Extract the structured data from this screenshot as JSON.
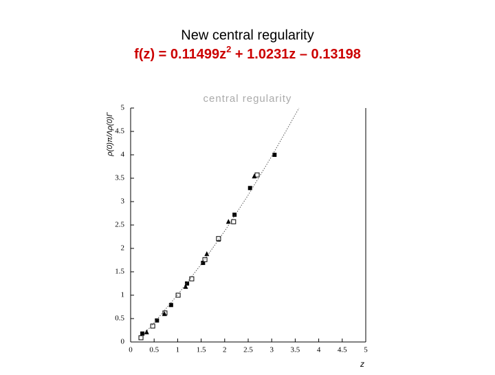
{
  "header": {
    "title": "New central regularity",
    "formula": {
      "prefix": "f(z) = 0.11499z",
      "superscript": "2",
      "suffix": " + 1.0231z – 0.13198"
    }
  },
  "chart_data": {
    "type": "scatter",
    "title": "central regularity",
    "x_label": "z",
    "y_label": "ρ(0)π/Λρ(0)Γ",
    "xlim": [
      0,
      5
    ],
    "ylim": [
      0,
      5
    ],
    "xticks": [
      0,
      0.5,
      1,
      1.5,
      2,
      2.5,
      3,
      3.5,
      4,
      4.5,
      5
    ],
    "yticks": [
      0,
      0.5,
      1,
      1.5,
      2,
      2.5,
      3,
      3.5,
      4,
      4.5,
      5
    ],
    "series": [
      {
        "marker": "square-filled",
        "color": "#000000",
        "x": [
          0.25,
          0.56,
          0.86,
          1.2,
          1.54,
          1.87,
          2.21,
          2.54,
          3.06
        ],
        "values": [
          0.18,
          0.46,
          0.79,
          1.25,
          1.69,
          2.19,
          2.72,
          3.29,
          4.0
        ]
      },
      {
        "marker": "square-open",
        "color": "#000000",
        "x": [
          0.22,
          0.47,
          0.73,
          1.01,
          1.3,
          1.58,
          1.87,
          2.19,
          2.69
        ],
        "values": [
          0.09,
          0.34,
          0.62,
          1.0,
          1.35,
          1.76,
          2.21,
          2.57,
          3.57
        ]
      },
      {
        "marker": "triangle",
        "color": "#000000",
        "x": [
          0.34,
          0.72,
          1.17,
          1.62,
          2.08,
          2.63
        ],
        "values": [
          0.21,
          0.6,
          1.18,
          1.88,
          2.57,
          3.54
        ]
      },
      {
        "marker": "dotted-line",
        "color": "#555555",
        "x": [
          0.25,
          0.5,
          1,
          1.5,
          2,
          2.5,
          3,
          3.3,
          3.58
        ],
        "values": [
          0.13,
          0.41,
          1.01,
          1.66,
          2.37,
          3.14,
          3.97,
          4.5,
          5.0
        ]
      }
    ]
  }
}
